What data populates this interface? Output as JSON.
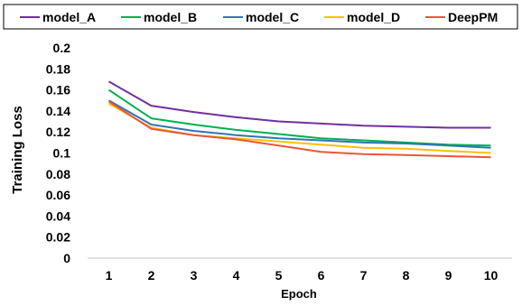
{
  "chart_data": {
    "type": "line",
    "title": "",
    "xlabel": "Epoch",
    "ylabel": "Training Loss",
    "x": [
      1,
      2,
      3,
      4,
      5,
      6,
      7,
      8,
      9,
      10
    ],
    "ylim": [
      0,
      0.2
    ],
    "yticks": [
      0,
      0.02,
      0.04,
      0.06,
      0.08,
      0.1,
      0.12,
      0.14,
      0.16,
      0.18,
      0.2
    ],
    "ytick_labels": [
      "0",
      "0.02",
      "0.04",
      "0.06",
      "0.08",
      "0.1",
      "0.12",
      "0.14",
      "0.16",
      "0.18",
      "0.2"
    ],
    "xtick_labels": [
      "1",
      "2",
      "3",
      "4",
      "5",
      "6",
      "7",
      "8",
      "9",
      "10"
    ],
    "grid": false,
    "legend_position": "top",
    "series": [
      {
        "name": "model_A",
        "color": "#7030A0",
        "values": [
          0.168,
          0.145,
          0.139,
          0.134,
          0.13,
          0.128,
          0.126,
          0.125,
          0.124,
          0.124
        ]
      },
      {
        "name": "model_B",
        "color": "#00B050",
        "values": [
          0.16,
          0.133,
          0.127,
          0.122,
          0.118,
          0.114,
          0.112,
          0.11,
          0.108,
          0.107
        ]
      },
      {
        "name": "model_C",
        "color": "#2E75B6",
        "values": [
          0.15,
          0.127,
          0.121,
          0.117,
          0.114,
          0.112,
          0.11,
          0.109,
          0.107,
          0.105
        ]
      },
      {
        "name": "model_D",
        "color": "#FFC000",
        "values": [
          0.147,
          0.124,
          0.117,
          0.114,
          0.111,
          0.108,
          0.105,
          0.104,
          0.102,
          0.1
        ]
      },
      {
        "name": "DeepPM",
        "color": "#E8563A",
        "values": [
          0.149,
          0.123,
          0.117,
          0.113,
          0.107,
          0.101,
          0.099,
          0.098,
          0.097,
          0.096
        ]
      }
    ]
  }
}
